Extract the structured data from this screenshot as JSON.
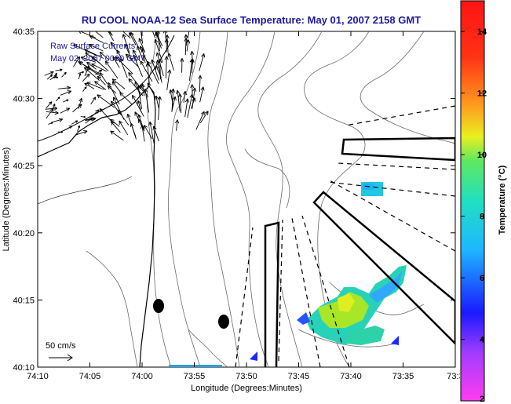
{
  "title": "RU COOL  NOAA-12  Sea Surface Temperature:  May 01, 2007 2158 GMT",
  "overlay_line1": "Raw Surface Currents",
  "overlay_line2": "May 02, 2007 0000 GMT",
  "x_axis_label": "Longitude (Degrees:Minutes)",
  "y_axis_label": "Latitude (Degrees:Minutes)",
  "scale_label": "50 cm/s",
  "colorbar_label": "Temperature (°C)",
  "x_ticks": [
    "74:10",
    "74:05",
    "74:00",
    "73:55",
    "73:50",
    "73:45",
    "73:40",
    "73:35",
    "73:3"
  ],
  "y_ticks": [
    "40:35",
    "40:30",
    "40:25",
    "40:20",
    "40:15",
    "40:10"
  ],
  "colorbar_ticks": [
    "14",
    "12",
    "10",
    "8",
    "6",
    "4",
    "2"
  ],
  "colors": {
    "title": "#1a1aa0",
    "coast": "#000000",
    "bathymetry": "#555555",
    "vectors": "#000000"
  }
}
